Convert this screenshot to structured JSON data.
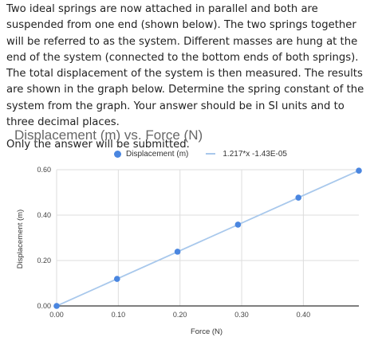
{
  "problem": {
    "text": "Two ideal springs are now attached in parallel and both are suspended from one end (shown below). The two springs together will be referred to as the system. Different masses are hung at the end of the system (connected to the bottom ends of both springs). The total displacement of the system is then measured. The results are shown in the graph below. Determine the spring constant of the system from the graph. Your answer should be in SI units and to three decimal places.",
    "note": "Only the answer will be submitted."
  },
  "colors": {
    "series": "#4a86e0",
    "trendline": "#a8c8ec",
    "grid": "#dddddd"
  },
  "chart_data": {
    "type": "scatter",
    "title": "Displacement (m) vs. Force (N)",
    "xlabel": "Force (N)",
    "ylabel": "Displacement (m)",
    "xlim": [
      0,
      0.49
    ],
    "ylim": [
      0,
      0.6
    ],
    "x_ticks": [
      0,
      0.1,
      0.2,
      0.3,
      0.4
    ],
    "x_tick_labels": [
      "0.00",
      "0.10",
      "0.20",
      "0.30",
      "0.40"
    ],
    "y_ticks": [
      0,
      0.2,
      0.4,
      0.6
    ],
    "y_tick_labels": [
      "0.00",
      "0.20",
      "0.40",
      "0.60"
    ],
    "grid": true,
    "legend_position": "top",
    "series": [
      {
        "name": "Displacement (m)",
        "x": [
          0.0,
          0.098,
          0.196,
          0.294,
          0.392,
          0.49
        ],
        "y": [
          0.0,
          0.119,
          0.239,
          0.358,
          0.477,
          0.596
        ]
      }
    ],
    "trendline": {
      "label": "1.217*x -1.43E-05",
      "slope": 1.217,
      "intercept": -1.43e-05
    }
  }
}
